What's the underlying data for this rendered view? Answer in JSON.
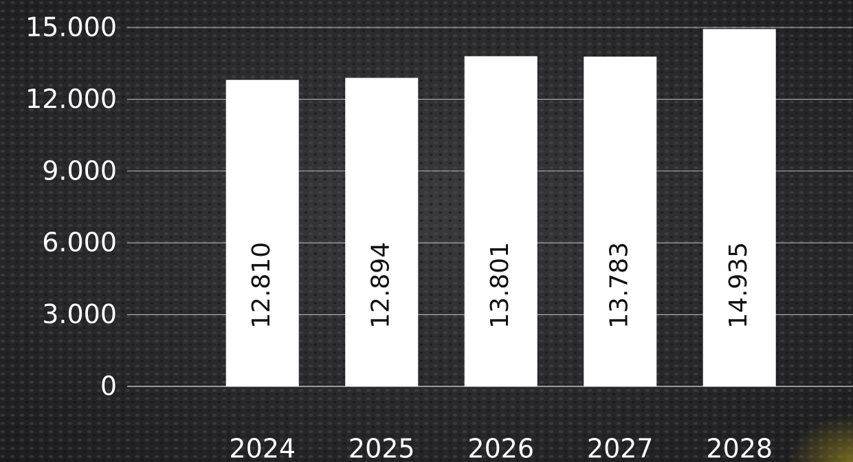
{
  "chart_data": {
    "type": "bar",
    "categories": [
      "2024",
      "2025",
      "2026",
      "2027",
      "2028"
    ],
    "values": [
      12810,
      12894,
      13801,
      13783,
      14935
    ],
    "value_labels": [
      "12.810",
      "12.894",
      "13.801",
      "13.783",
      "14.935"
    ],
    "color": "#ffffff",
    "ylim": [
      0,
      15000
    ],
    "yticks": [
      0,
      {
        "value": 3000,
        "label": "3.000"
      },
      {
        "value": 6000,
        "label": "6.000"
      },
      {
        "value": 9000,
        "label": "9.000"
      },
      {
        "value": 12000,
        "label": "12.000"
      },
      {
        "value": 15000,
        "label": "15.000"
      }
    ],
    "grid": true
  }
}
